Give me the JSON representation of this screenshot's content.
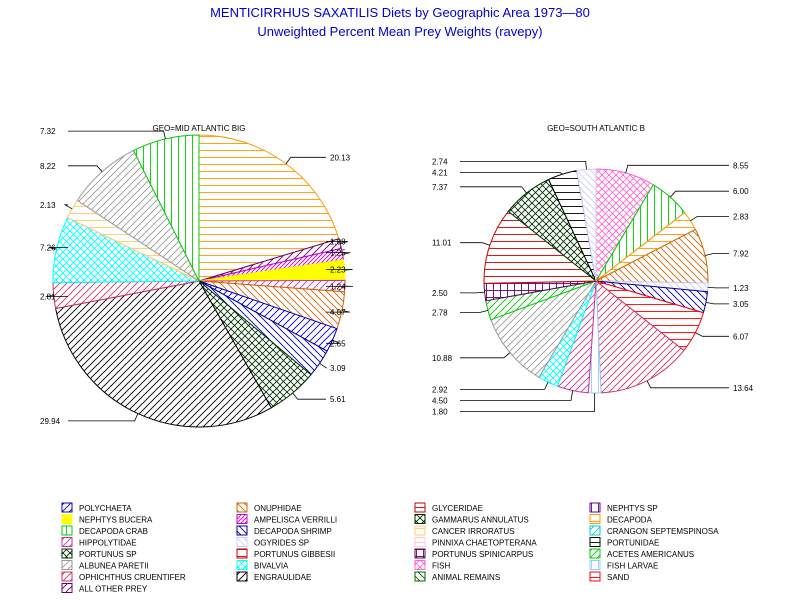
{
  "title": "MENTICIRRHUS SAXATILIS Diets by Geographic Area 1973—80",
  "subtitle": "Unweighted Percent Mean Prey Weights (ravepy)",
  "categories": [
    {
      "name": "POLYCHAETA",
      "color": "#0000cc",
      "pattern": "fdiag"
    },
    {
      "name": "ONUPHIDAE",
      "color": "#cc6600",
      "pattern": "bdiag"
    },
    {
      "name": "GLYCERIDAE",
      "color": "#cc0000",
      "pattern": "horiz"
    },
    {
      "name": "NEPHTYS SP",
      "color": "#660099",
      "pattern": "vert"
    },
    {
      "name": "NEPHTYS BUCERA",
      "color": "#ffff00",
      "pattern": "solid"
    },
    {
      "name": "AMPELISCA VERRILLI",
      "color": "#cc00cc",
      "pattern": "fdiag-dense"
    },
    {
      "name": "GAMMARUS ANNULATUS",
      "color": "#003300",
      "pattern": "cross"
    },
    {
      "name": "DECAPODA",
      "color": "#ff9900",
      "pattern": "horiz"
    },
    {
      "name": "DECAPODA CRAB",
      "color": "#00cc00",
      "pattern": "vert"
    },
    {
      "name": "DECAPODA SHRIMP",
      "color": "#000099",
      "pattern": "bdiag"
    },
    {
      "name": "CANCER IRRORATUS",
      "color": "#ffcc66",
      "pattern": "horiz"
    },
    {
      "name": "CRANGON SEPTEMSPINOSA",
      "color": "#00cccc",
      "pattern": "fdiag"
    },
    {
      "name": "HIPPOLYTIDAE",
      "color": "#cc3399",
      "pattern": "fdiag"
    },
    {
      "name": "OGYRIDES SP",
      "color": "#ccccff",
      "pattern": "bdiag"
    },
    {
      "name": "PINNIXA CHAETOPTERANA",
      "color": "#ffcccc",
      "pattern": "horiz"
    },
    {
      "name": "PORTUNIDAE",
      "color": "#000000",
      "pattern": "horiz"
    },
    {
      "name": "PORTUNUS SP",
      "color": "#003300",
      "pattern": "cross"
    },
    {
      "name": "PORTUNUS GIBBESII",
      "color": "#cc0000",
      "pattern": "horiz"
    },
    {
      "name": "PORTUNUS SPINICARPUS",
      "color": "#660066",
      "pattern": "grid"
    },
    {
      "name": "ACETES AMERICANUS",
      "color": "#00cc00",
      "pattern": "fdiag"
    },
    {
      "name": "ALBUNEA PARETII",
      "color": "#999999",
      "pattern": "fdiag"
    },
    {
      "name": "BIVALVIA",
      "color": "#00ffff",
      "pattern": "cross"
    },
    {
      "name": "FISH",
      "color": "#ff66cc",
      "pattern": "cross"
    },
    {
      "name": "FISH LARVAE",
      "color": "#99ccff",
      "pattern": "vert"
    },
    {
      "name": "OPHICHTHUS CRUENTIFER",
      "color": "#cc3366",
      "pattern": "fdiag"
    },
    {
      "name": "ENGRAULIDAE",
      "color": "#000000",
      "pattern": "fdiag"
    },
    {
      "name": "ANIMAL REMAINS",
      "color": "#006600",
      "pattern": "bdiag"
    },
    {
      "name": "SAND",
      "color": "#ff0000",
      "pattern": "horiz"
    },
    {
      "name": "ALL OTHER PREY",
      "color": "#660066",
      "pattern": "fdiag"
    }
  ],
  "chart_data": [
    {
      "type": "pie",
      "title": "GEO=MID ATLANTIC BIG",
      "slices": [
        {
          "name": "DECAPODA",
          "value": 20.13,
          "label": "20.13"
        },
        {
          "name": "ALL OTHER PREY",
          "value": 1.08,
          "label": "1.08"
        },
        {
          "name": "AMPELISCA VERRILLI",
          "value": 1.25,
          "label": "1.25"
        },
        {
          "name": "NEPHTYS BUCERA",
          "value": 2.23,
          "label": "2.23"
        },
        {
          "name": "HIPPOLYTIDAE",
          "value": 1.24,
          "label": "1.24"
        },
        {
          "name": "ONUPHIDAE",
          "value": 4.07,
          "label": "4.07"
        },
        {
          "name": "POLYCHAETA",
          "value": 2.65,
          "label": "2.65"
        },
        {
          "name": "DECAPODA SHRIMP",
          "value": 3.09,
          "label": "3.09"
        },
        {
          "name": "PORTUNUS SP",
          "value": 5.61,
          "label": "5.61"
        },
        {
          "name": "ENGRAULIDAE",
          "value": 29.94,
          "label": "29.94"
        },
        {
          "name": "OPHICHTHUS CRUENTIFER",
          "value": 2.81,
          "label": "2.81"
        },
        {
          "name": "BIVALVIA",
          "value": 7.26,
          "label": "7.26"
        },
        {
          "name": "CANCER IRRORATUS",
          "value": 2.13,
          "label": "2.13"
        },
        {
          "name": "ALBUNEA PARETII",
          "value": 8.22,
          "label": "8.22"
        },
        {
          "name": "DECAPODA CRAB",
          "value": 7.32,
          "label": "7.32"
        }
      ]
    },
    {
      "type": "pie",
      "title": "GEO=SOUTH ATLANTIC B",
      "slices": [
        {
          "name": "FISH",
          "value": 8.55,
          "label": "8.55"
        },
        {
          "name": "DECAPODA CRAB",
          "value": 6.0,
          "label": "6.00"
        },
        {
          "name": "DECAPODA",
          "value": 2.83,
          "label": "2.83"
        },
        {
          "name": "ONUPHIDAE",
          "value": 7.92,
          "label": "7.92"
        },
        {
          "name": "OGYRIDES SP",
          "value": 1.23,
          "label": "1.23"
        },
        {
          "name": "DECAPODA SHRIMP",
          "value": 3.05,
          "label": "3.05"
        },
        {
          "name": "SAND",
          "value": 6.07,
          "label": "6.07"
        },
        {
          "name": "OPHICHTHUS CRUENTIFER",
          "value": 13.64,
          "label": "13.64"
        },
        {
          "name": "FISH LARVAE",
          "value": 1.8,
          "label": "1.80"
        },
        {
          "name": "HIPPOLYTIDAE",
          "value": 4.5,
          "label": "4.50"
        },
        {
          "name": "BIVALVIA",
          "value": 2.92,
          "label": "2.92"
        },
        {
          "name": "ALBUNEA PARETII",
          "value": 10.88,
          "label": "10.88"
        },
        {
          "name": "ACETES AMERICANUS",
          "value": 2.78,
          "label": "2.78"
        },
        {
          "name": "PORTUNUS SPINICARPUS",
          "value": 2.5,
          "label": "2.50"
        },
        {
          "name": "PORTUNUS GIBBESII",
          "value": 11.01,
          "label": "11.01"
        },
        {
          "name": "GAMMARUS ANNULATUS",
          "value": 7.37,
          "label": "7.37"
        },
        {
          "name": "PORTUNIDAE",
          "value": 4.21,
          "label": "4.21"
        },
        {
          "name": "OGYRIDES SP",
          "value": 2.74,
          "label": "2.74"
        }
      ]
    }
  ]
}
